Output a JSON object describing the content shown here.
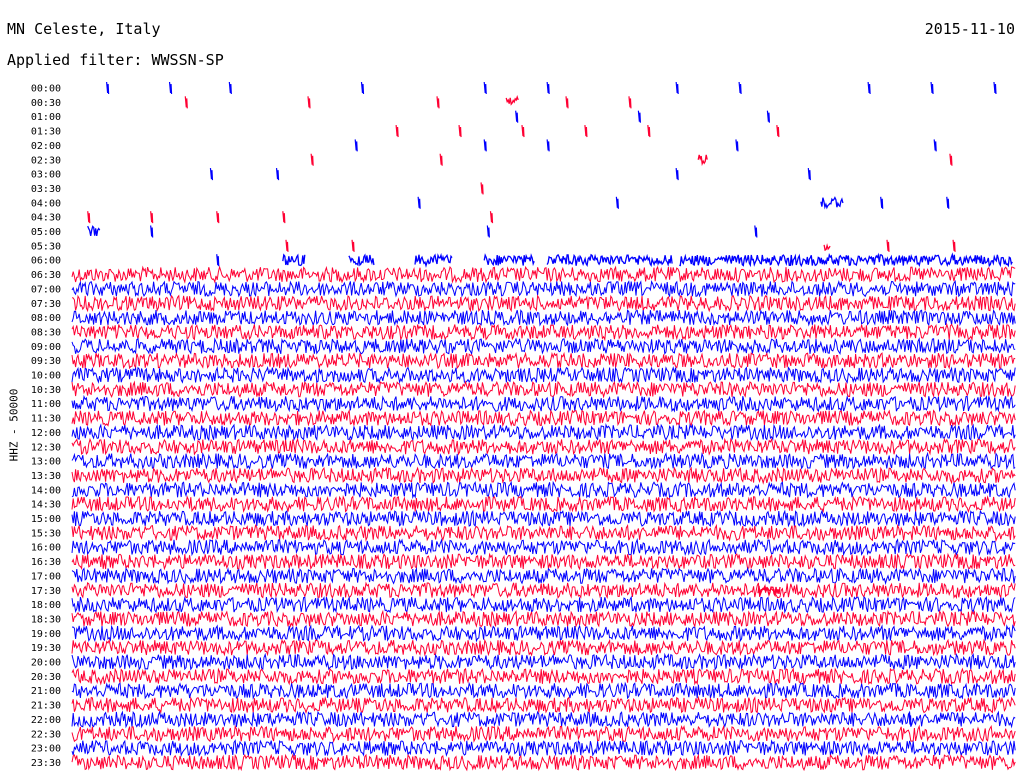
{
  "header": {
    "station": "MN Celeste, Italy",
    "date": "2015-11-10",
    "filter_label": "Applied filter: WWSSN-SP"
  },
  "chart_data": {
    "type": "helicorder",
    "y_axis_label": "HHZ - 50000",
    "trace_colors": [
      "#0000ff",
      "#ff0033"
    ],
    "rows": [
      "00:00",
      "00:30",
      "01:00",
      "01:30",
      "02:00",
      "02:30",
      "03:00",
      "03:30",
      "04:00",
      "04:30",
      "05:00",
      "05:30",
      "06:00",
      "06:30",
      "07:00",
      "07:30",
      "08:00",
      "08:30",
      "09:00",
      "09:30",
      "10:00",
      "10:30",
      "11:00",
      "11:30",
      "12:00",
      "12:30",
      "13:00",
      "13:30",
      "14:00",
      "14:30",
      "15:00",
      "15:30",
      "16:00",
      "16:30",
      "17:00",
      "17:30",
      "18:00",
      "18:30",
      "19:00",
      "19:30",
      "20:00",
      "20:30",
      "21:00",
      "21:30",
      "22:00",
      "22:30",
      "23:00",
      "23:30"
    ],
    "noisy_from_row": "06:30",
    "minutes_per_row": 30,
    "events": [
      {
        "row": "00:00",
        "minute": 1.1
      },
      {
        "row": "00:00",
        "minute": 3.1
      },
      {
        "row": "00:00",
        "minute": 5.0
      },
      {
        "row": "00:00",
        "minute": 9.2
      },
      {
        "row": "00:00",
        "minute": 13.1
      },
      {
        "row": "00:00",
        "minute": 15.1
      },
      {
        "row": "00:00",
        "minute": 19.2
      },
      {
        "row": "00:00",
        "minute": 21.2
      },
      {
        "row": "00:00",
        "minute": 25.3
      },
      {
        "row": "00:00",
        "minute": 27.3
      },
      {
        "row": "00:00",
        "minute": 29.3
      },
      {
        "row": "00:30",
        "minute": 3.6
      },
      {
        "row": "00:30",
        "minute": 7.5
      },
      {
        "row": "00:30",
        "minute": 11.6
      },
      {
        "row": "00:30",
        "minute": 13.8,
        "duration": 0.4
      },
      {
        "row": "00:30",
        "minute": 15.7
      },
      {
        "row": "00:30",
        "minute": 17.7
      },
      {
        "row": "01:00",
        "minute": 14.1
      },
      {
        "row": "01:00",
        "minute": 18.0
      },
      {
        "row": "01:00",
        "minute": 22.1
      },
      {
        "row": "01:30",
        "minute": 10.3
      },
      {
        "row": "01:30",
        "minute": 12.3
      },
      {
        "row": "01:30",
        "minute": 14.3
      },
      {
        "row": "01:30",
        "minute": 16.3
      },
      {
        "row": "01:30",
        "minute": 18.3
      },
      {
        "row": "01:30",
        "minute": 22.4
      },
      {
        "row": "02:00",
        "minute": 9.0
      },
      {
        "row": "02:00",
        "minute": 13.1
      },
      {
        "row": "02:00",
        "minute": 15.1
      },
      {
        "row": "02:00",
        "minute": 21.1
      },
      {
        "row": "02:00",
        "minute": 27.4
      },
      {
        "row": "02:30",
        "minute": 7.6
      },
      {
        "row": "02:30",
        "minute": 11.7
      },
      {
        "row": "02:30",
        "minute": 19.9,
        "duration": 0.3
      },
      {
        "row": "02:30",
        "minute": 27.9
      },
      {
        "row": "03:00",
        "minute": 4.4
      },
      {
        "row": "03:00",
        "minute": 6.5
      },
      {
        "row": "03:00",
        "minute": 19.2
      },
      {
        "row": "03:00",
        "minute": 23.4
      },
      {
        "row": "03:30",
        "minute": 13.0
      },
      {
        "row": "04:00",
        "minute": 11.0
      },
      {
        "row": "04:00",
        "minute": 17.3
      },
      {
        "row": "04:00",
        "minute": 23.8,
        "duration": 0.7
      },
      {
        "row": "04:00",
        "minute": 25.7
      },
      {
        "row": "04:00",
        "minute": 27.8
      },
      {
        "row": "04:30",
        "minute": 0.5
      },
      {
        "row": "04:30",
        "minute": 2.5
      },
      {
        "row": "04:30",
        "minute": 4.6
      },
      {
        "row": "04:30",
        "minute": 6.7
      },
      {
        "row": "04:30",
        "minute": 13.3
      },
      {
        "row": "05:00",
        "minute": 0.5,
        "duration": 0.4
      },
      {
        "row": "05:00",
        "minute": 2.5
      },
      {
        "row": "05:00",
        "minute": 13.2
      },
      {
        "row": "05:00",
        "minute": 21.7
      },
      {
        "row": "05:30",
        "minute": 6.8
      },
      {
        "row": "05:30",
        "minute": 8.9
      },
      {
        "row": "05:30",
        "minute": 23.9,
        "duration": 0.2
      },
      {
        "row": "05:30",
        "minute": 25.9
      },
      {
        "row": "05:30",
        "minute": 28.0
      },
      {
        "row": "06:00",
        "minute": 4.6
      },
      {
        "row": "06:00",
        "minute": 6.7,
        "duration": 0.7
      },
      {
        "row": "06:00",
        "minute": 8.8,
        "duration": 0.8
      },
      {
        "row": "06:00",
        "minute": 10.9,
        "duration": 1.2
      },
      {
        "row": "06:00",
        "minute": 13.1,
        "duration": 1.6
      },
      {
        "row": "06:00",
        "minute": 15.1,
        "duration": 4.0
      },
      {
        "row": "06:00",
        "minute": 19.3,
        "duration": 10.6
      },
      {
        "row": "17:30",
        "minute": 21.8,
        "duration": 0.7
      },
      {
        "row": "22:00",
        "minute": 26.6
      }
    ]
  }
}
